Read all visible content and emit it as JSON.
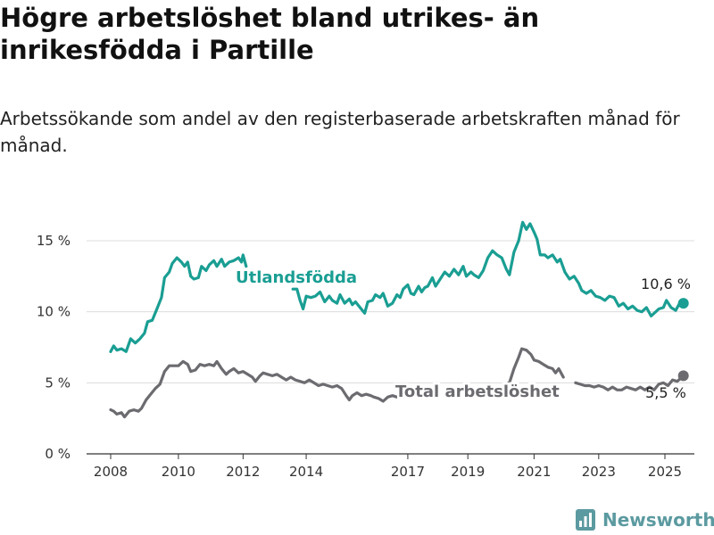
{
  "title": "Högre arbetslöshet bland utrikes- än inrikesfödda i Partille",
  "subtitle": "Arbetssökande som andel av den registerbaserade arbetskraften månad för månad.",
  "brand": {
    "name": "Newsworthy",
    "color": "#5b9aa0"
  },
  "colors": {
    "series_1": "#1a9e93",
    "series_2": "#6b6b70",
    "grid": "#dcdcdc",
    "axis": "#333333"
  },
  "chart_data": {
    "type": "line",
    "title": "Högre arbetslöshet bland utrikes- än inrikesfödda i Partille",
    "subtitle": "Arbetssökande som andel av den registerbaserade arbetskraften månad för månad.",
    "xlabel": "",
    "ylabel": "",
    "x_ticks": [
      "2008",
      "2010",
      "2012",
      "2014",
      "2017",
      "2019",
      "2021",
      "2023",
      "2025"
    ],
    "y_ticks": [
      "0 %",
      "5 %",
      "10 %",
      "15 %"
    ],
    "ylim": [
      0,
      17
    ],
    "grid": true,
    "legend": "inline labels",
    "series": [
      {
        "name": "Utlandsfödda",
        "end_label": "10,6 %",
        "segments": [
          [
            [
              2008.0,
              7.2
            ],
            [
              2008.1,
              7.6
            ],
            [
              2008.2,
              7.3
            ],
            [
              2008.35,
              7.4
            ],
            [
              2008.5,
              7.2
            ],
            [
              2008.65,
              8.1
            ],
            [
              2008.8,
              7.8
            ],
            [
              2008.95,
              8.1
            ],
            [
              2009.1,
              8.5
            ],
            [
              2009.2,
              9.3
            ],
            [
              2009.35,
              9.4
            ],
            [
              2009.5,
              10.2
            ],
            [
              2009.65,
              11.0
            ],
            [
              2009.75,
              12.4
            ],
            [
              2009.9,
              12.8
            ],
            [
              2010.0,
              13.4
            ],
            [
              2010.15,
              13.8
            ],
            [
              2010.3,
              13.5
            ],
            [
              2010.4,
              13.2
            ],
            [
              2010.5,
              13.5
            ],
            [
              2010.6,
              12.5
            ],
            [
              2010.7,
              12.3
            ],
            [
              2010.85,
              12.4
            ],
            [
              2010.95,
              13.2
            ],
            [
              2011.1,
              12.9
            ],
            [
              2011.2,
              13.3
            ],
            [
              2011.35,
              13.6
            ],
            [
              2011.45,
              13.2
            ],
            [
              2011.6,
              13.7
            ],
            [
              2011.7,
              13.2
            ],
            [
              2011.85,
              13.5
            ],
            [
              2012.0,
              13.6
            ],
            [
              2012.15,
              13.8
            ],
            [
              2012.25,
              13.5
            ],
            [
              2012.3,
              14.0
            ],
            [
              2012.4,
              13.2
            ]
          ],
          [
            [
              2013.92,
              11.6
            ],
            [
              2014.05,
              11.6
            ],
            [
              2014.15,
              10.8
            ],
            [
              2014.25,
              10.2
            ],
            [
              2014.35,
              11.1
            ],
            [
              2014.5,
              11.0
            ],
            [
              2014.65,
              11.1
            ],
            [
              2014.8,
              11.4
            ],
            [
              2014.95,
              10.7
            ],
            [
              2015.1,
              11.1
            ],
            [
              2015.2,
              10.8
            ],
            [
              2015.35,
              10.6
            ],
            [
              2015.45,
              11.2
            ],
            [
              2015.6,
              10.6
            ],
            [
              2015.75,
              10.9
            ],
            [
              2015.85,
              10.5
            ],
            [
              2015.95,
              10.7
            ],
            [
              2016.1,
              10.3
            ],
            [
              2016.25,
              9.9
            ],
            [
              2016.35,
              10.7
            ],
            [
              2016.5,
              10.8
            ],
            [
              2016.6,
              11.2
            ],
            [
              2016.75,
              11.0
            ],
            [
              2016.85,
              11.3
            ],
            [
              2017.0,
              10.4
            ],
            [
              2017.15,
              10.6
            ],
            [
              2017.3,
              11.2
            ],
            [
              2017.4,
              11.0
            ],
            [
              2017.5,
              11.6
            ],
            [
              2017.65,
              11.9
            ],
            [
              2017.75,
              11.3
            ],
            [
              2017.85,
              11.2
            ],
            [
              2018.0,
              11.8
            ],
            [
              2018.1,
              11.4
            ],
            [
              2018.2,
              11.7
            ],
            [
              2018.3,
              11.8
            ],
            [
              2018.45,
              12.4
            ],
            [
              2018.55,
              11.8
            ],
            [
              2018.7,
              12.3
            ],
            [
              2018.85,
              12.8
            ],
            [
              2019.0,
              12.5
            ],
            [
              2019.15,
              13.0
            ],
            [
              2019.3,
              12.6
            ],
            [
              2019.45,
              13.2
            ],
            [
              2019.55,
              12.5
            ],
            [
              2019.7,
              12.8
            ],
            [
              2019.8,
              12.6
            ],
            [
              2019.95,
              12.4
            ],
            [
              2020.1,
              12.9
            ],
            [
              2020.25,
              13.8
            ],
            [
              2020.4,
              14.3
            ],
            [
              2020.55,
              14.0
            ],
            [
              2020.7,
              13.8
            ],
            [
              2020.85,
              13.0
            ],
            [
              2020.95,
              12.6
            ],
            [
              2021.1,
              14.2
            ],
            [
              2021.25,
              15.0
            ],
            [
              2021.38,
              16.3
            ],
            [
              2021.5,
              15.8
            ],
            [
              2021.62,
              16.2
            ],
            [
              2021.75,
              15.6
            ],
            [
              2021.85,
              15.1
            ],
            [
              2021.95,
              14.0
            ],
            [
              2022.1,
              14.0
            ],
            [
              2022.2,
              13.8
            ],
            [
              2022.35,
              14.0
            ],
            [
              2022.5,
              13.5
            ],
            [
              2022.6,
              13.7
            ],
            [
              2022.75,
              12.8
            ],
            [
              2022.9,
              12.3
            ],
            [
              2023.05,
              12.5
            ],
            [
              2023.2,
              12.0
            ],
            [
              2023.3,
              11.5
            ],
            [
              2023.45,
              11.3
            ],
            [
              2023.6,
              11.5
            ],
            [
              2023.75,
              11.1
            ],
            [
              2023.9,
              11.0
            ],
            [
              2024.05,
              10.8
            ],
            [
              2024.2,
              11.1
            ],
            [
              2024.35,
              11.0
            ],
            [
              2024.5,
              10.4
            ],
            [
              2024.65,
              10.6
            ],
            [
              2024.8,
              10.2
            ],
            [
              2024.95,
              10.4
            ],
            [
              2025.1,
              10.1
            ],
            [
              2025.25,
              10.0
            ],
            [
              2025.4,
              10.3
            ],
            [
              2025.55,
              9.7
            ],
            [
              2025.7,
              10.0
            ],
            [
              2025.8,
              10.2
            ],
            [
              2025.95,
              10.3
            ],
            [
              2026.05,
              10.8
            ],
            [
              2026.2,
              10.3
            ],
            [
              2026.35,
              10.1
            ],
            [
              2026.5,
              10.7
            ],
            [
              2026.6,
              10.6
            ]
          ]
        ]
      },
      {
        "name": "Total arbetslöshet",
        "end_label": "5,5 %",
        "segments": [
          [
            [
              2008.0,
              3.1
            ],
            [
              2008.1,
              3.0
            ],
            [
              2008.2,
              2.8
            ],
            [
              2008.35,
              2.9
            ],
            [
              2008.45,
              2.6
            ],
            [
              2008.6,
              3.0
            ],
            [
              2008.75,
              3.1
            ],
            [
              2008.9,
              3.0
            ],
            [
              2009.0,
              3.2
            ],
            [
              2009.15,
              3.8
            ],
            [
              2009.3,
              4.2
            ],
            [
              2009.45,
              4.6
            ],
            [
              2009.6,
              4.9
            ],
            [
              2009.75,
              5.8
            ],
            [
              2009.9,
              6.2
            ],
            [
              2010.05,
              6.2
            ],
            [
              2010.2,
              6.2
            ],
            [
              2010.35,
              6.5
            ],
            [
              2010.5,
              6.3
            ],
            [
              2010.6,
              5.8
            ],
            [
              2010.75,
              5.9
            ],
            [
              2010.9,
              6.3
            ],
            [
              2011.05,
              6.2
            ],
            [
              2011.2,
              6.3
            ],
            [
              2011.35,
              6.2
            ],
            [
              2011.45,
              6.5
            ],
            [
              2011.6,
              6.0
            ],
            [
              2011.75,
              5.6
            ],
            [
              2011.85,
              5.8
            ],
            [
              2012.0,
              6.0
            ],
            [
              2012.15,
              5.7
            ],
            [
              2012.3,
              5.8
            ],
            [
              2012.45,
              5.6
            ],
            [
              2012.6,
              5.4
            ],
            [
              2012.7,
              5.1
            ],
            [
              2012.85,
              5.5
            ],
            [
              2012.95,
              5.7
            ],
            [
              2013.1,
              5.6
            ],
            [
              2013.25,
              5.5
            ],
            [
              2013.4,
              5.6
            ],
            [
              2013.55,
              5.4
            ],
            [
              2013.7,
              5.2
            ],
            [
              2013.85,
              5.4
            ],
            [
              2014.0,
              5.2
            ],
            [
              2014.15,
              5.1
            ],
            [
              2014.3,
              5.0
            ],
            [
              2014.45,
              5.2
            ],
            [
              2014.6,
              5.0
            ],
            [
              2014.75,
              4.8
            ],
            [
              2014.9,
              4.9
            ],
            [
              2015.05,
              4.8
            ],
            [
              2015.2,
              4.7
            ],
            [
              2015.35,
              4.8
            ],
            [
              2015.5,
              4.6
            ],
            [
              2015.65,
              4.1
            ],
            [
              2015.75,
              3.8
            ],
            [
              2015.85,
              4.1
            ],
            [
              2016.0,
              4.3
            ],
            [
              2016.15,
              4.1
            ],
            [
              2016.3,
              4.2
            ],
            [
              2016.45,
              4.1
            ],
            [
              2016.55,
              4.0
            ],
            [
              2016.7,
              3.9
            ],
            [
              2016.85,
              3.7
            ],
            [
              2017.0,
              4.0
            ],
            [
              2017.15,
              4.1
            ],
            [
              2017.3,
              4.0
            ]
          ],
          [
            [
              2020.85,
              4.9
            ],
            [
              2020.95,
              5.0
            ],
            [
              2021.1,
              6.0
            ],
            [
              2021.25,
              6.8
            ],
            [
              2021.35,
              7.4
            ],
            [
              2021.5,
              7.3
            ],
            [
              2021.65,
              7.0
            ],
            [
              2021.75,
              6.6
            ],
            [
              2021.9,
              6.5
            ],
            [
              2022.05,
              6.3
            ],
            [
              2022.2,
              6.1
            ],
            [
              2022.35,
              6.0
            ],
            [
              2022.45,
              5.7
            ],
            [
              2022.55,
              6.0
            ],
            [
              2022.7,
              5.4
            ]
          ],
          [
            [
              2023.1,
              5.0
            ],
            [
              2023.25,
              4.9
            ],
            [
              2023.4,
              4.8
            ],
            [
              2023.55,
              4.8
            ],
            [
              2023.7,
              4.7
            ],
            [
              2023.85,
              4.8
            ],
            [
              2024.0,
              4.7
            ],
            [
              2024.15,
              4.5
            ],
            [
              2024.3,
              4.7
            ],
            [
              2024.45,
              4.5
            ],
            [
              2024.6,
              4.5
            ],
            [
              2024.75,
              4.7
            ],
            [
              2024.9,
              4.6
            ],
            [
              2025.05,
              4.5
            ],
            [
              2025.2,
              4.7
            ],
            [
              2025.35,
              4.5
            ],
            [
              2025.5,
              4.7
            ],
            [
              2025.65,
              4.5
            ],
            [
              2025.8,
              4.9
            ],
            [
              2025.95,
              5.0
            ],
            [
              2026.1,
              4.8
            ],
            [
              2026.25,
              5.2
            ],
            [
              2026.4,
              5.1
            ],
            [
              2026.5,
              5.3
            ],
            [
              2026.6,
              5.5
            ]
          ]
        ]
      }
    ]
  }
}
